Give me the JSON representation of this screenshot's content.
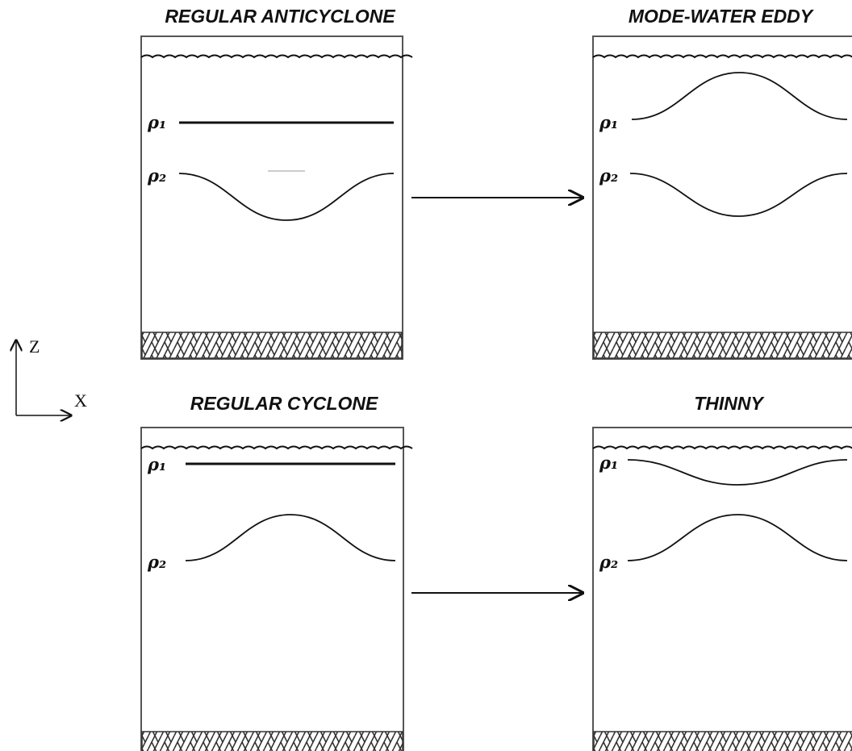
{
  "axes": {
    "z": "Z",
    "x": "X"
  },
  "panels": [
    {
      "title": "REGULAR ANTICYCLONE",
      "labels": [
        "ρ₁",
        "ρ₂"
      ]
    },
    {
      "title": "MODE-WATER EDDY",
      "labels": [
        "ρ₁",
        "ρ₂"
      ]
    },
    {
      "title": "REGULAR CYCLONE",
      "labels": [
        "ρ₁",
        "ρ₂"
      ]
    },
    {
      "title": "THINNY",
      "labels": [
        "ρ₁",
        "ρ₂"
      ]
    }
  ]
}
